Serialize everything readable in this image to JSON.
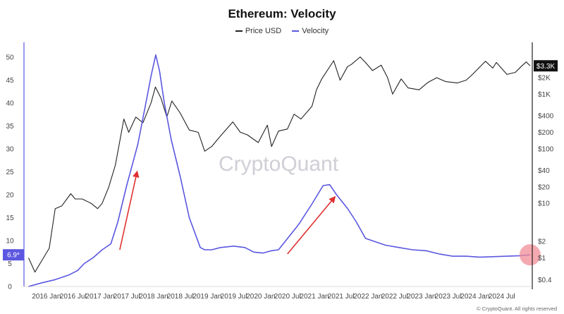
{
  "chart_data": {
    "type": "line",
    "title": "Ethereum: Velocity",
    "legend": {
      "placement": "top-center"
    },
    "series": [
      {
        "name": "Price USD",
        "color": "#222222",
        "axis": "right",
        "points": [
          [
            "2015-09-01",
            1.0
          ],
          [
            "2015-10-15",
            0.55
          ],
          [
            "2015-12-01",
            0.9
          ],
          [
            "2016-01-20",
            1.5
          ],
          [
            "2016-03-01",
            8
          ],
          [
            "2016-04-15",
            9
          ],
          [
            "2016-06-15",
            15
          ],
          [
            "2016-07-15",
            12
          ],
          [
            "2016-09-01",
            12
          ],
          [
            "2016-11-01",
            10
          ],
          [
            "2016-12-15",
            8
          ],
          [
            "2017-01-15",
            10
          ],
          [
            "2017-03-01",
            20
          ],
          [
            "2017-04-15",
            50
          ],
          [
            "2017-06-12",
            350
          ],
          [
            "2017-07-15",
            200
          ],
          [
            "2017-09-01",
            380
          ],
          [
            "2017-10-20",
            300
          ],
          [
            "2017-12-15",
            700
          ],
          [
            "2018-01-13",
            1350
          ],
          [
            "2018-02-20",
            850
          ],
          [
            "2018-04-01",
            380
          ],
          [
            "2018-05-05",
            750
          ],
          [
            "2018-07-01",
            450
          ],
          [
            "2018-09-01",
            220
          ],
          [
            "2018-11-01",
            200
          ],
          [
            "2018-12-15",
            90
          ],
          [
            "2019-02-01",
            110
          ],
          [
            "2019-04-01",
            170
          ],
          [
            "2019-06-25",
            310
          ],
          [
            "2019-08-15",
            200
          ],
          [
            "2019-10-01",
            180
          ],
          [
            "2019-12-15",
            130
          ],
          [
            "2020-02-15",
            270
          ],
          [
            "2020-03-15",
            110
          ],
          [
            "2020-05-01",
            210
          ],
          [
            "2020-07-01",
            230
          ],
          [
            "2020-08-15",
            430
          ],
          [
            "2020-10-01",
            350
          ],
          [
            "2020-12-15",
            600
          ],
          [
            "2021-01-15",
            1200
          ],
          [
            "2021-02-20",
            1900
          ],
          [
            "2021-05-12",
            4100
          ],
          [
            "2021-06-25",
            1800
          ],
          [
            "2021-08-15",
            3200
          ],
          [
            "2021-09-10",
            3500
          ],
          [
            "2021-11-09",
            4800
          ],
          [
            "2021-12-15",
            3800
          ],
          [
            "2022-02-01",
            2700
          ],
          [
            "2022-04-01",
            3400
          ],
          [
            "2022-05-15",
            2000
          ],
          [
            "2022-06-18",
            1000
          ],
          [
            "2022-08-15",
            1900
          ],
          [
            "2022-10-01",
            1300
          ],
          [
            "2022-12-15",
            1200
          ],
          [
            "2023-02-15",
            1650
          ],
          [
            "2023-04-15",
            2000
          ],
          [
            "2023-06-15",
            1700
          ],
          [
            "2023-09-01",
            1600
          ],
          [
            "2023-11-01",
            1800
          ],
          [
            "2023-12-15",
            2300
          ],
          [
            "2024-03-12",
            4000
          ],
          [
            "2024-05-01",
            3000
          ],
          [
            "2024-05-25",
            3800
          ],
          [
            "2024-08-05",
            2300
          ],
          [
            "2024-10-01",
            2500
          ],
          [
            "2024-11-10",
            3200
          ],
          [
            "2024-12-15",
            3900
          ],
          [
            "2025-01-10",
            3300
          ]
        ]
      },
      {
        "name": "Velocity",
        "color": "#5b57e0",
        "axis": "left",
        "points": [
          [
            "2015-09-01",
            0.0
          ],
          [
            "2015-12-01",
            0.8
          ],
          [
            "2016-03-01",
            1.5
          ],
          [
            "2016-06-01",
            2.5
          ],
          [
            "2016-08-01",
            3.5
          ],
          [
            "2016-09-15",
            5.0
          ],
          [
            "2016-11-15",
            6.3
          ],
          [
            "2017-01-15",
            8.0
          ],
          [
            "2017-03-15",
            9.3
          ],
          [
            "2017-05-01",
            14
          ],
          [
            "2017-07-01",
            22
          ],
          [
            "2017-09-15",
            31
          ],
          [
            "2017-11-15",
            41
          ],
          [
            "2017-12-15",
            46
          ],
          [
            "2018-01-15",
            50.5
          ],
          [
            "2018-02-10",
            47
          ],
          [
            "2018-03-15",
            40
          ],
          [
            "2018-05-01",
            32
          ],
          [
            "2018-07-01",
            24
          ],
          [
            "2018-09-01",
            15
          ],
          [
            "2018-11-15",
            8.5
          ],
          [
            "2018-12-15",
            8.0
          ],
          [
            "2019-02-01",
            8.0
          ],
          [
            "2019-04-01",
            8.5
          ],
          [
            "2019-07-01",
            8.8
          ],
          [
            "2019-09-15",
            8.5
          ],
          [
            "2019-11-15",
            7.5
          ],
          [
            "2020-01-15",
            7.3
          ],
          [
            "2020-03-15",
            7.8
          ],
          [
            "2020-05-01",
            8.0
          ],
          [
            "2020-07-15",
            11
          ],
          [
            "2020-09-15",
            13.5
          ],
          [
            "2020-12-15",
            18
          ],
          [
            "2021-03-01",
            22
          ],
          [
            "2021-04-15",
            22.2
          ],
          [
            "2021-06-01",
            20
          ],
          [
            "2021-08-15",
            17
          ],
          [
            "2021-10-15",
            14
          ],
          [
            "2021-12-15",
            10.5
          ],
          [
            "2022-02-15",
            9.8
          ],
          [
            "2022-05-01",
            9.0
          ],
          [
            "2022-08-01",
            8.5
          ],
          [
            "2022-11-01",
            8.0
          ],
          [
            "2023-02-01",
            7.8
          ],
          [
            "2023-05-01",
            7.1
          ],
          [
            "2023-08-01",
            6.6
          ],
          [
            "2023-11-01",
            6.6
          ],
          [
            "2024-02-01",
            6.4
          ],
          [
            "2024-05-01",
            6.5
          ],
          [
            "2024-08-01",
            6.6
          ],
          [
            "2024-11-01",
            6.7
          ],
          [
            "2025-01-10",
            6.9
          ]
        ]
      }
    ],
    "left_axis": {
      "range": [
        0,
        52
      ],
      "ticks": [
        "0",
        "5",
        "10",
        "15",
        "20",
        "25",
        "30",
        "35",
        "40",
        "45",
        "50"
      ]
    },
    "right_axis": {
      "scale": "log",
      "range": [
        0.3,
        7000
      ],
      "ticks": [
        {
          "value": 0.4,
          "label": "$0.4"
        },
        {
          "value": 1,
          "label": "$1"
        },
        {
          "value": 2,
          "label": "$2"
        },
        {
          "value": 10,
          "label": "$10"
        },
        {
          "value": 20,
          "label": "$20"
        },
        {
          "value": 40,
          "label": "$40"
        },
        {
          "value": 100,
          "label": "$100"
        },
        {
          "value": 200,
          "label": "$200"
        },
        {
          "value": 400,
          "label": "$400"
        },
        {
          "value": 1000,
          "label": "$1K"
        },
        {
          "value": 2000,
          "label": "$2K"
        }
      ]
    },
    "x_axis": {
      "range": [
        "2015-08-01",
        "2025-01-25"
      ],
      "ticks": [
        {
          "date": "2016-01-01",
          "label": "2016 Jan"
        },
        {
          "date": "2016-07-01",
          "label": "2016 Jul"
        },
        {
          "date": "2017-01-01",
          "label": "2017 Jan"
        },
        {
          "date": "2017-07-01",
          "label": "2017 Jul"
        },
        {
          "date": "2018-01-01",
          "label": "2018 Jan"
        },
        {
          "date": "2018-07-01",
          "label": "2018 Jul"
        },
        {
          "date": "2019-01-01",
          "label": "2019 Jan"
        },
        {
          "date": "2019-07-01",
          "label": "2019 Jul"
        },
        {
          "date": "2020-01-01",
          "label": "2020 Jan"
        },
        {
          "date": "2020-07-01",
          "label": "2020 Jul"
        },
        {
          "date": "2021-01-01",
          "label": "2021 Jan"
        },
        {
          "date": "2021-07-01",
          "label": "2021 Jul"
        },
        {
          "date": "2022-01-01",
          "label": "2022 Jan"
        },
        {
          "date": "2022-07-01",
          "label": "2022 Jul"
        },
        {
          "date": "2023-01-01",
          "label": "2023 Jan"
        },
        {
          "date": "2023-07-01",
          "label": "2023 Jul"
        },
        {
          "date": "2024-01-01",
          "label": "2024 Jan"
        },
        {
          "date": "2024-07-01",
          "label": "2024 Jul"
        }
      ]
    },
    "current_values": {
      "velocity": {
        "value": 6.9,
        "label": "6.9*"
      },
      "price": {
        "value": 3300,
        "label": "$3.3K"
      }
    },
    "annotations": [
      {
        "type": "arrow",
        "color": "#e03030",
        "from": [
          "2017-05-15",
          8
        ],
        "to": [
          "2017-09-10",
          25
        ]
      },
      {
        "type": "arrow",
        "color": "#e03030",
        "from": [
          "2020-07-01",
          7.1
        ],
        "to": [
          "2021-05-20",
          19.5
        ]
      },
      {
        "type": "highlight-circle",
        "color": "#f08c96",
        "at": [
          "2025-01-10",
          6.9
        ]
      }
    ],
    "grid": false
  },
  "watermark": "CryptoQuant",
  "copyright": "© CryptoQuant. All rights reserved"
}
